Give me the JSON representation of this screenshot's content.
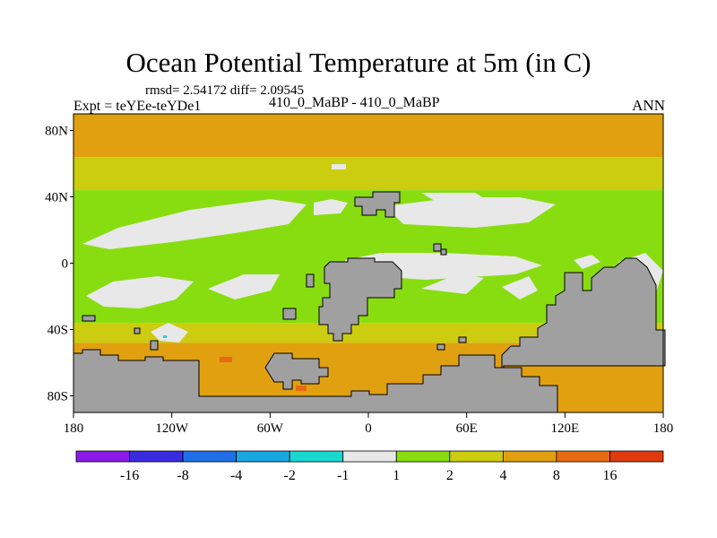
{
  "chart_data": {
    "type": "heatmap",
    "title": "Ocean Potential Temperature at 5m (in C)",
    "stats_text": "rmsd= 2.54172 diff= 2.09545",
    "left_label": "Expt = teYEe-teYDe1",
    "center_label": "410_0_MaBP - 410_0_MaBP",
    "right_label": "ANN",
    "x_ticks": [
      "180",
      "120W",
      "60W",
      "0",
      "60E",
      "120E",
      "180"
    ],
    "y_ticks": [
      "80N",
      "40N",
      "0",
      "40S",
      "80S"
    ],
    "xlim": [
      -180,
      180
    ],
    "ylim": [
      -90,
      90
    ],
    "colorbar": {
      "colors": [
        "#8a1be8",
        "#3a2be0",
        "#1f6fe8",
        "#18a7e0",
        "#1ad8d0",
        "#e8e8e8",
        "#88dd10",
        "#cccc10",
        "#e0a010",
        "#e86a10",
        "#e03a10"
      ],
      "labels": [
        "-16",
        "-8",
        "-4",
        "-2",
        "-1",
        "1",
        "2",
        "4",
        "8",
        "16"
      ]
    },
    "bands": [
      {
        "lat_from": 90,
        "lat_to": 64,
        "color": "#e0a010"
      },
      {
        "lat_from": 64,
        "lat_to": 44,
        "color": "#cccc10"
      },
      {
        "lat_from": 44,
        "lat_to": -36,
        "color": "#88dd10"
      },
      {
        "lat_from": -36,
        "lat_to": -48,
        "color": "#cccc10"
      },
      {
        "lat_from": -48,
        "lat_to": -90,
        "color": "#e0a010"
      }
    ],
    "land_color": "#a0a0a0",
    "near_zero_color": "#e8e8e8"
  }
}
